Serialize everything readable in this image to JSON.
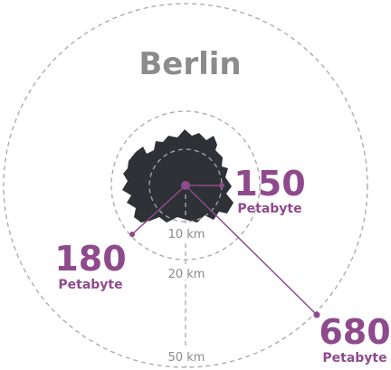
{
  "diagram": {
    "title": "Berlin",
    "rings": [
      {
        "label": "10 km"
      },
      {
        "label": "20 km"
      },
      {
        "label": "50 km"
      }
    ],
    "datapoints": [
      {
        "value": "150",
        "unit": "Petabyte"
      },
      {
        "value": "180",
        "unit": "Petabyte"
      },
      {
        "value": "680",
        "unit": "Petabyte"
      }
    ],
    "colors": {
      "accent": "#8e4a8c",
      "city_fill": "#2e3135",
      "title": "#8c8c8c",
      "ring": "#a8a8a8",
      "distance_label": "#8a8a8a"
    }
  }
}
